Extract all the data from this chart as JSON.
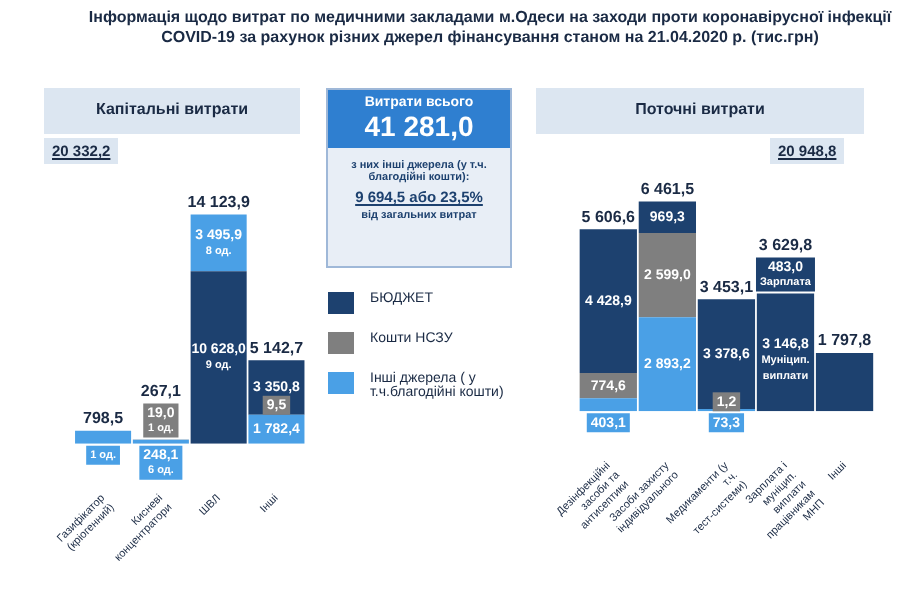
{
  "chart_data": [
    {
      "type": "bar",
      "title": "Інформація щодо витрат по медичними закладами м.Одеси на заходи проти коронавірусної інфекції COVID-19 за рахунок різних джерел фінансування станом на 21.04.2020 р. (тис.грн)",
      "subtitle": "Капітальні витрати",
      "annotations": [
        "20 332,2",
        {
          "text": "1 од.",
          "x": "Газифікатор (кріогенний)",
          "y": 798.5
        }
      ],
      "categories": [
        "Газифікатор (кріогенний)",
        "Кисневі концентратори",
        "ШВЛ",
        "Інші"
      ],
      "stacked": true,
      "tick_labels": "x",
      "legend": false,
      "series": [
        {
          "color": "#4aa0e6",
          "values": [
            798.5,
            248.1,
            null,
            1782.4
          ],
          "value_labels": [
            null,
            "248,1\n6 од.",
            null,
            "1 782,4"
          ]
        },
        {
          "color": "#7f7f7f",
          "values": [
            null,
            19.0,
            null,
            9.5
          ],
          "value_labels": [
            null,
            "19,0\n1 од.",
            null,
            "9,5"
          ]
        },
        {
          "color": "#1d416f",
          "values": [
            null,
            null,
            10628.0,
            3350.8
          ],
          "value_labels": [
            null,
            null,
            "10 628,0\n9 од.",
            "3 350,8"
          ]
        },
        {
          "color": "#4aa0e6",
          "values": [
            null,
            null,
            3495.9,
            null
          ],
          "value_labels": [
            null,
            null,
            "3 495,9\n8 од.",
            null
          ]
        }
      ],
      "totals": [
        "798,5",
        "267,1",
        "14 123,9",
        "5 142,7"
      ]
    },
    {
      "type": "other",
      "title": "Витрати всього",
      "annotations": [
        "41 281,0",
        "з них інші джерела (у т.ч. благодійні кошти):",
        "9 694,5 або 23,5%",
        "від загальних витрат"
      ]
    },
    {
      "type": "bar",
      "title": "Поточні витрати",
      "annotations": [
        "20 948,8"
      ],
      "categories": [
        "Дезінфекційні засоби та антисептики",
        "Засоби захисту індивідуального",
        "Медикаменти (у т.ч. тест-системи)",
        "Зарплата і муніцип. виплати працівникам МНП",
        "Інші"
      ],
      "stacked": true,
      "tick_labels": "x",
      "legend": "left",
      "series": [
        {
          "name": "Інші джерела ( у т.ч.благодійні кошти)",
          "color": "#4aa0e6",
          "values": [
            403.1,
            2893.2,
            73.3,
            null,
            null
          ],
          "value_labels": [
            "403,1",
            "2 893,2",
            "73,3",
            null,
            null
          ]
        },
        {
          "name": "Кошти НСЗУ",
          "color": "#7f7f7f",
          "values": [
            774.6,
            2599.0,
            1.2,
            null,
            null
          ],
          "value_labels": [
            "774,6",
            "2 599,0",
            "1,2",
            null,
            null
          ]
        },
        {
          "name": "БЮДЖЕТ",
          "color": "#1d416f",
          "values": [
            4428.9,
            969.3,
            3378.6,
            3146.8,
            1797.8
          ],
          "value_labels": [
            "4 428,9",
            "969,3",
            "3 378,6",
            "3 146,8\nМуніцип.\nвиплати",
            null
          ]
        },
        {
          "color": "#1d416f",
          "values": [
            null,
            null,
            null,
            483.0,
            null
          ],
          "value_labels": [
            null,
            null,
            null,
            "483,0\nЗарплата",
            null
          ]
        }
      ],
      "totals": [
        "5 606,6",
        "6 461,5",
        "3 453,1",
        "3 629,8",
        "1 797,8"
      ]
    }
  ]
}
